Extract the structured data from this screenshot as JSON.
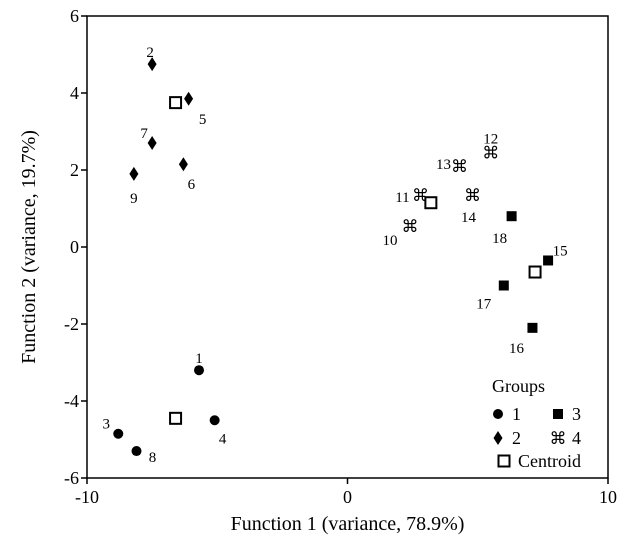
{
  "chart_data": {
    "type": "scatter",
    "xlabel": "Function 1 (variance, 78.9%)",
    "ylabel": "Function 2 (variance, 19.7%)",
    "xlim": [
      -10,
      10
    ],
    "ylim": [
      -6,
      6
    ],
    "xticks": [
      -10,
      0,
      10
    ],
    "yticks": [
      -6,
      -4,
      -2,
      0,
      2,
      4,
      6
    ],
    "grid": false,
    "legend": {
      "title": "Groups",
      "placement": "bottom-right",
      "entries": [
        {
          "label": "1",
          "marker": "circle"
        },
        {
          "label": "3",
          "marker": "square"
        },
        {
          "label": "2",
          "marker": "diamond"
        },
        {
          "label": "4",
          "marker": "command"
        },
        {
          "label": "Centroid",
          "marker": "open-square"
        }
      ]
    },
    "series": [
      {
        "name": "1",
        "marker": "circle",
        "points": [
          {
            "id": "1",
            "x": -5.7,
            "y": -3.2
          },
          {
            "id": "3",
            "x": -8.8,
            "y": -4.85
          },
          {
            "id": "4",
            "x": -5.1,
            "y": -4.5
          },
          {
            "id": "8",
            "x": -8.1,
            "y": -5.3
          }
        ]
      },
      {
        "name": "2",
        "marker": "diamond",
        "points": [
          {
            "id": "2",
            "x": -7.5,
            "y": 4.75
          },
          {
            "id": "5",
            "x": -6.1,
            "y": 3.85
          },
          {
            "id": "7",
            "x": -7.5,
            "y": 2.7
          },
          {
            "id": "6",
            "x": -6.3,
            "y": 2.15
          },
          {
            "id": "9",
            "x": -8.2,
            "y": 1.9
          }
        ]
      },
      {
        "name": "3",
        "marker": "square",
        "points": [
          {
            "id": "15",
            "x": 7.7,
            "y": -0.35
          },
          {
            "id": "16",
            "x": 7.1,
            "y": -2.1
          },
          {
            "id": "17",
            "x": 6.0,
            "y": -1.0
          },
          {
            "id": "18",
            "x": 6.3,
            "y": 0.8
          }
        ]
      },
      {
        "name": "4",
        "marker": "command",
        "points": [
          {
            "id": "10",
            "x": 2.4,
            "y": 0.55
          },
          {
            "id": "11",
            "x": 2.8,
            "y": 1.35
          },
          {
            "id": "12",
            "x": 5.5,
            "y": 2.45
          },
          {
            "id": "13",
            "x": 4.3,
            "y": 2.1
          },
          {
            "id": "14",
            "x": 4.8,
            "y": 1.35
          }
        ]
      },
      {
        "name": "Centroid",
        "marker": "open-square",
        "points": [
          {
            "x": -6.6,
            "y": 3.75
          },
          {
            "x": -6.6,
            "y": -4.45
          },
          {
            "x": 3.2,
            "y": 1.15
          },
          {
            "x": 7.2,
            "y": -0.65
          }
        ]
      }
    ]
  }
}
